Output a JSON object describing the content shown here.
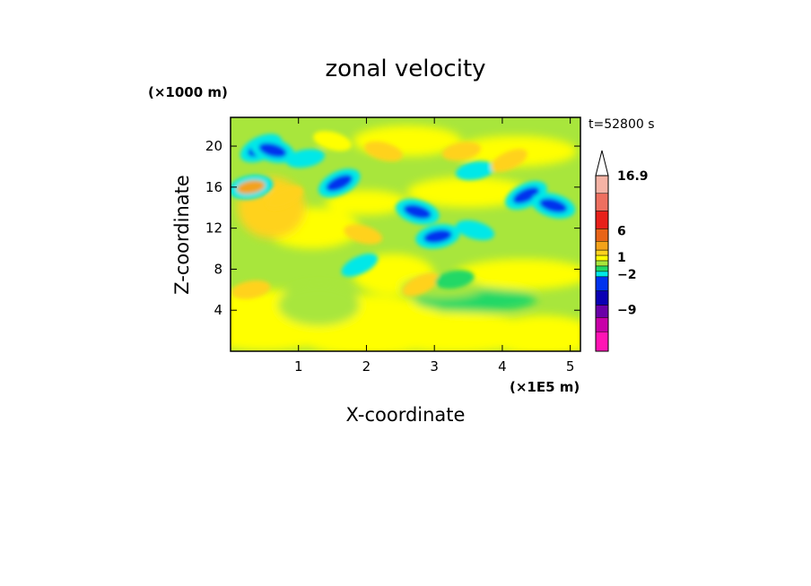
{
  "chart_data": {
    "type": "heatmap",
    "title": "zonal velocity",
    "xlabel": "X-coordinate",
    "ylabel": "Z-coordinate",
    "x_unit": "(×1E5 m)",
    "y_unit": "(×1000 m)",
    "time_label": "t=52800 s",
    "xlim": [
      0,
      5.15
    ],
    "ylim": [
      0,
      22.8
    ],
    "x_ticks": [
      1,
      2,
      3,
      4,
      5
    ],
    "x_tick_labels": [
      "1",
      "2",
      "3",
      "4",
      "5"
    ],
    "y_ticks": [
      4,
      8,
      12,
      16,
      20
    ],
    "y_tick_labels": [
      "4",
      "8",
      "12",
      "16",
      "20"
    ],
    "colorbar": {
      "max_label": "16.9",
      "labels": [
        "16.9",
        "6",
        "1",
        "−2",
        "−9"
      ],
      "bands_top_to_bottom": [
        "#f5b3a5",
        "#ee7060",
        "#e8201a",
        "#e86418",
        "#f3a21a",
        "#ffd21e",
        "#ffff00",
        "#a8e63c",
        "#22d866",
        "#00e8e8",
        "#0033ee",
        "#0a00b4",
        "#6a00a8",
        "#c800a8",
        "#ff14b4"
      ],
      "extend_top": true
    },
    "series": [
      {
        "note_values": "",
        "levels": [
          -9,
          -2,
          1,
          6,
          16.9
        ],
        "features": [
          {
            "x": 0.45,
            "z": 19.8,
            "u": -4
          },
          {
            "x": 0.62,
            "z": 19.6,
            "u": -4
          },
          {
            "x": 1.1,
            "z": 18.8,
            "u": -3
          },
          {
            "x": 1.6,
            "z": 16.4,
            "u": -4
          },
          {
            "x": 2.75,
            "z": 13.6,
            "u": -4
          },
          {
            "x": 3.05,
            "z": 11.2,
            "u": -4
          },
          {
            "x": 4.35,
            "z": 15.2,
            "u": -4
          },
          {
            "x": 4.75,
            "z": 14.2,
            "u": -4
          },
          {
            "x": 3.6,
            "z": 17.6,
            "u": -3
          },
          {
            "x": 1.9,
            "z": 8.4,
            "u": -3
          },
          {
            "x": 3.6,
            "z": 11.8,
            "u": -3
          },
          {
            "x": 0.3,
            "z": 16.0,
            "u": 4
          },
          {
            "x": 0.8,
            "z": 15.0,
            "u": 3
          },
          {
            "x": 2.25,
            "z": 19.5,
            "u": 3
          },
          {
            "x": 3.4,
            "z": 19.5,
            "u": 3
          },
          {
            "x": 4.1,
            "z": 18.6,
            "u": 3
          },
          {
            "x": 1.95,
            "z": 11.4,
            "u": 3
          },
          {
            "x": 0.3,
            "z": 6.0,
            "u": 3
          },
          {
            "x": 2.8,
            "z": 6.5,
            "u": 3
          },
          {
            "x": 1.5,
            "z": 20.5,
            "u": 2
          },
          {
            "x": 3.3,
            "z": 7.0,
            "u": -1
          }
        ]
      }
    ]
  }
}
